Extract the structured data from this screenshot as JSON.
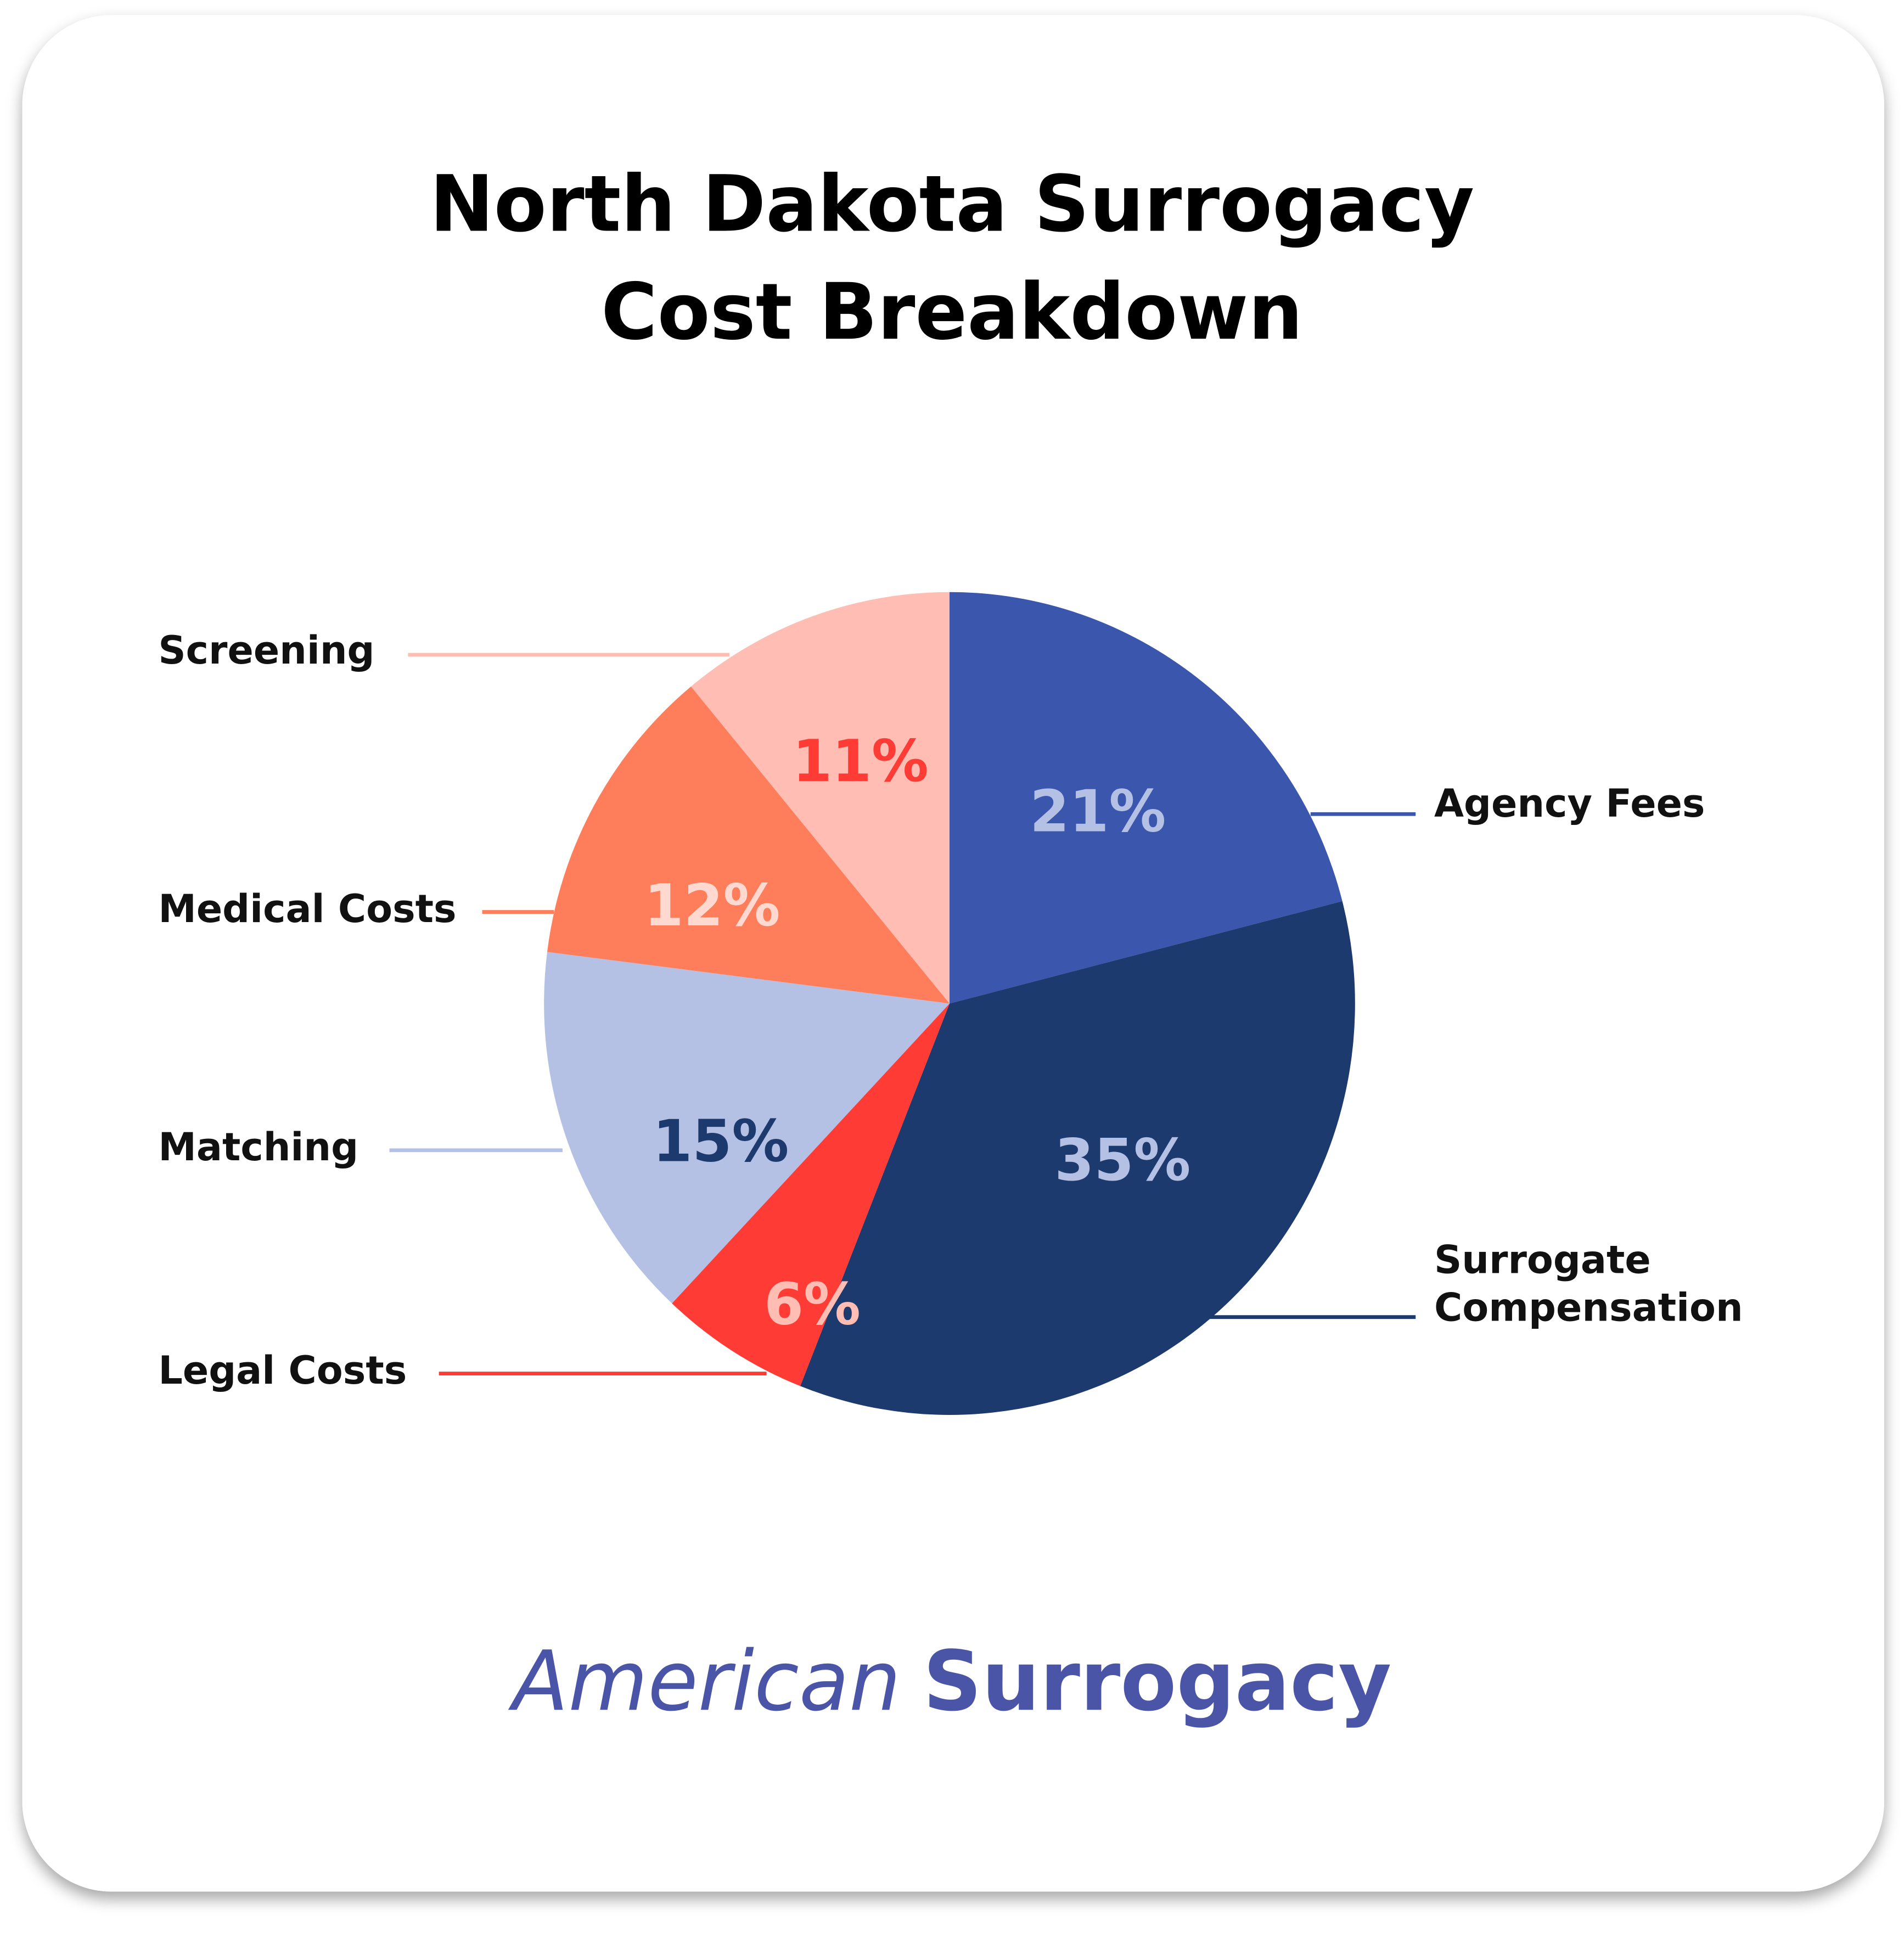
{
  "chart_data": {
    "type": "pie",
    "title": "North Dakota Surrogacy Cost Breakdown",
    "categories": [
      "Agency Fees",
      "Surrogate Compensation",
      "Legal Costs",
      "Matching",
      "Medical Costs",
      "Screening"
    ],
    "values": [
      21,
      35,
      6,
      15,
      12,
      11
    ],
    "value_labels": [
      "21%",
      "35%",
      "6%",
      "15%",
      "12%",
      "11%"
    ],
    "colors": [
      "#3a56ad",
      "#1d3a6e",
      "#ff3b36",
      "#b4c0e4",
      "#fe7e5c",
      "#ffbdb4"
    ],
    "value_label_colors": [
      "#b4c0e4",
      "#b4c0e4",
      "#ffbdb4",
      "#1d3a6e",
      "#ffd9d0",
      "#ff3b36"
    ],
    "start_angle": 0,
    "direction": "clockwise"
  },
  "logo": {
    "light": "American",
    "bold": "Surrogacy"
  }
}
